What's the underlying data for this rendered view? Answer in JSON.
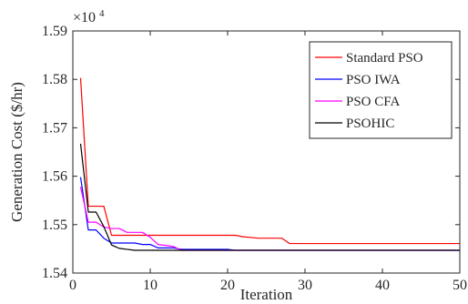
{
  "chart_data": {
    "type": "line",
    "title": "",
    "xlabel": "Iteration",
    "ylabel": "Generation Cost ($/hr)",
    "y_exponent_label": "×10",
    "y_exponent_power": "4",
    "xlim": [
      0,
      50
    ],
    "ylim": [
      1.54,
      1.59
    ],
    "xticks": [
      0,
      10,
      20,
      30,
      40,
      50
    ],
    "yticks": [
      1.54,
      1.55,
      1.56,
      1.57,
      1.58,
      1.59
    ],
    "xtick_labels": [
      "0",
      "10",
      "20",
      "30",
      "40",
      "50"
    ],
    "ytick_labels": [
      "1.54",
      "1.55",
      "1.56",
      "1.57",
      "1.58",
      "1.59"
    ],
    "grid": false,
    "legend_position": "top-right",
    "series": [
      {
        "name": "Standard PSO",
        "color": "#ff0000",
        "points": [
          [
            1,
            1.5803
          ],
          [
            2,
            1.5538
          ],
          [
            3,
            1.5538
          ],
          [
            4,
            1.5538
          ],
          [
            5,
            1.5478
          ],
          [
            20,
            1.5478
          ],
          [
            21,
            1.5478
          ],
          [
            22,
            1.5475
          ],
          [
            24,
            1.5472
          ],
          [
            27,
            1.5472
          ],
          [
            28,
            1.5461
          ],
          [
            50,
            1.5461
          ]
        ]
      },
      {
        "name": "PSO IWA",
        "color": "#0000ff",
        "points": [
          [
            1,
            1.5598
          ],
          [
            2,
            1.5489
          ],
          [
            3,
            1.5489
          ],
          [
            4,
            1.5472
          ],
          [
            5,
            1.5462
          ],
          [
            8,
            1.5462
          ],
          [
            9,
            1.5459
          ],
          [
            10,
            1.5459
          ],
          [
            11,
            1.5452
          ],
          [
            13,
            1.5452
          ],
          [
            14,
            1.5449
          ],
          [
            20,
            1.5449
          ],
          [
            21,
            1.5447
          ],
          [
            50,
            1.5447
          ]
        ]
      },
      {
        "name": "PSO CFA",
        "color": "#ff00ff",
        "points": [
          [
            1,
            1.5578
          ],
          [
            2,
            1.5505
          ],
          [
            3,
            1.5505
          ],
          [
            4,
            1.5495
          ],
          [
            5,
            1.5492
          ],
          [
            6,
            1.5492
          ],
          [
            7,
            1.5484
          ],
          [
            9,
            1.5484
          ],
          [
            10,
            1.5474
          ],
          [
            11,
            1.5459
          ],
          [
            13,
            1.5455
          ],
          [
            14,
            1.5447
          ],
          [
            50,
            1.5447
          ]
        ]
      },
      {
        "name": "PSOHIC",
        "color": "#000000",
        "points": [
          [
            1,
            1.5667
          ],
          [
            2,
            1.5526
          ],
          [
            3,
            1.5526
          ],
          [
            4,
            1.5496
          ],
          [
            5,
            1.5458
          ],
          [
            6,
            1.5451
          ],
          [
            7,
            1.5449
          ],
          [
            8,
            1.5447
          ],
          [
            50,
            1.5447
          ]
        ]
      }
    ]
  }
}
